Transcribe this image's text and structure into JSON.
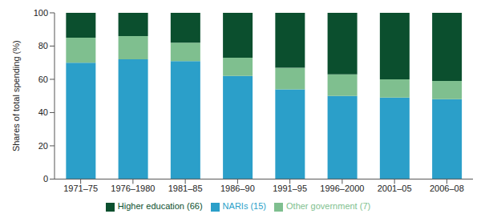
{
  "chart_data": {
    "type": "bar",
    "stacked": true,
    "ylabel": "Shares of total spending (%)",
    "categories": [
      "1971–75",
      "1976–1980",
      "1981–85",
      "1986–90",
      "1991–95",
      "1996–2000",
      "2001–05",
      "2006–08"
    ],
    "series": [
      {
        "name": "NARIs (15)",
        "color": "#2b9fc9",
        "values": [
          70,
          72,
          71,
          62,
          54,
          50,
          49,
          48
        ]
      },
      {
        "name": "Other government (7)",
        "color": "#7fbf8f",
        "values": [
          15,
          14,
          11,
          11,
          13,
          13,
          11,
          11
        ]
      },
      {
        "name": "Higher education (66)",
        "color": "#0b4f2e",
        "values": [
          15,
          14,
          18,
          27,
          33,
          37,
          40,
          41
        ]
      }
    ],
    "ylim": [
      0,
      100
    ],
    "yticks": [
      0,
      20,
      40,
      60,
      80,
      100
    ],
    "legend": "bottom"
  }
}
